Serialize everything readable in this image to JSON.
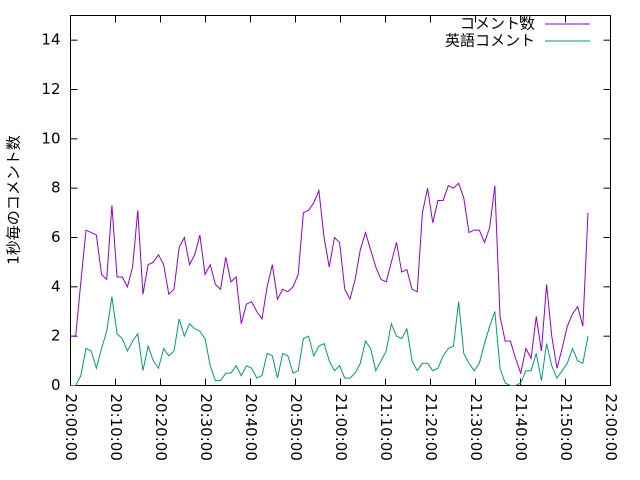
{
  "chart_data": {
    "type": "line",
    "y_label": "1秒毎のコメント数",
    "x": [
      "20:00:00",
      "20:01:09",
      "20:02:18",
      "20:03:27",
      "20:04:36",
      "20:05:45",
      "20:06:54",
      "20:08:03",
      "20:09:12",
      "20:10:21",
      "20:11:30",
      "20:12:39",
      "20:13:48",
      "20:14:57",
      "20:16:06",
      "20:17:15",
      "20:18:24",
      "20:19:33",
      "20:20:42",
      "20:21:51",
      "20:23:00",
      "20:24:09",
      "20:25:18",
      "20:26:27",
      "20:27:36",
      "20:28:45",
      "20:29:54",
      "20:31:03",
      "20:32:12",
      "20:33:21",
      "20:34:30",
      "20:35:39",
      "20:36:48",
      "20:37:57",
      "20:39:06",
      "20:40:15",
      "20:41:24",
      "20:42:33",
      "20:43:42",
      "20:44:51",
      "20:46:00",
      "20:47:09",
      "20:48:18",
      "20:49:27",
      "20:50:36",
      "20:51:45",
      "20:52:54",
      "20:54:03",
      "20:55:12",
      "20:56:21",
      "20:57:30",
      "20:58:39",
      "20:59:48",
      "21:00:57",
      "21:02:06",
      "21:03:15",
      "21:04:24",
      "21:05:33",
      "21:06:42",
      "21:07:51",
      "21:09:00",
      "21:10:09",
      "21:11:18",
      "21:12:27",
      "21:13:36",
      "21:14:45",
      "21:15:54",
      "21:17:03",
      "21:18:12",
      "21:19:21",
      "21:20:30",
      "21:21:39",
      "21:22:48",
      "21:23:57",
      "21:25:06",
      "21:26:15",
      "21:27:24",
      "21:28:33",
      "21:29:42",
      "21:30:51",
      "21:32:00",
      "21:33:09",
      "21:34:18",
      "21:35:27",
      "21:36:36",
      "21:37:45",
      "21:38:54",
      "21:40:03",
      "21:41:12",
      "21:42:21",
      "21:43:30",
      "21:44:39",
      "21:45:48",
      "21:46:57",
      "21:48:06",
      "21:49:15",
      "21:50:24",
      "21:51:33",
      "21:52:42",
      "21:53:51",
      "21:55:00"
    ],
    "series": [
      {
        "name": "コメント数",
        "color": "#9400d3",
        "values": [
          2.0,
          2.0,
          4.2,
          6.3,
          6.2,
          6.1,
          4.5,
          4.3,
          7.3,
          4.4,
          4.4,
          4.0,
          4.8,
          7.1,
          3.7,
          4.9,
          5.0,
          5.3,
          4.9,
          3.7,
          3.9,
          5.6,
          6.0,
          4.9,
          5.3,
          6.1,
          4.5,
          4.9,
          4.1,
          3.9,
          5.2,
          4.2,
          4.4,
          2.5,
          3.3,
          3.4,
          3.0,
          2.7,
          4.0,
          4.9,
          3.5,
          3.9,
          3.8,
          4.0,
          4.5,
          7.0,
          7.1,
          7.4,
          7.9,
          6.0,
          4.8,
          6.0,
          5.8,
          3.9,
          3.5,
          4.3,
          5.5,
          6.2,
          5.5,
          4.8,
          4.3,
          4.2,
          5.0,
          5.8,
          4.6,
          4.7,
          3.9,
          3.8,
          7.0,
          8.0,
          6.6,
          7.5,
          7.5,
          8.1,
          8.0,
          8.2,
          7.6,
          6.2,
          6.3,
          6.3,
          5.8,
          6.4,
          8.1,
          2.8,
          1.8,
          1.8,
          1.1,
          0.5,
          1.5,
          1.1,
          2.8,
          1.4,
          4.1,
          2.0,
          0.7,
          1.5,
          2.4,
          2.9,
          3.2,
          2.4,
          7.0
        ]
      },
      {
        "name": "英語コメント",
        "color": "#009e73",
        "values": [
          0.0,
          0.0,
          0.4,
          1.5,
          1.4,
          0.7,
          1.5,
          2.2,
          3.6,
          2.1,
          1.9,
          1.4,
          1.8,
          2.1,
          0.6,
          1.6,
          1.0,
          0.7,
          1.5,
          1.2,
          1.4,
          2.7,
          2.0,
          2.5,
          2.3,
          2.2,
          1.9,
          0.8,
          0.2,
          0.2,
          0.5,
          0.5,
          0.8,
          0.4,
          0.8,
          0.7,
          0.3,
          0.4,
          1.3,
          1.2,
          0.3,
          1.3,
          1.2,
          0.5,
          0.6,
          1.9,
          2.0,
          1.2,
          1.6,
          1.7,
          1.0,
          0.6,
          0.8,
          0.3,
          0.3,
          0.5,
          0.9,
          1.8,
          1.5,
          0.6,
          1.0,
          1.4,
          2.5,
          2.0,
          1.9,
          2.3,
          1.0,
          0.6,
          0.9,
          0.9,
          0.6,
          0.7,
          1.2,
          1.5,
          1.6,
          3.4,
          1.3,
          0.9,
          0.6,
          0.9,
          1.7,
          2.4,
          3.0,
          0.7,
          0.1,
          0.0,
          0.0,
          0.1,
          0.6,
          0.6,
          1.3,
          0.2,
          1.7,
          0.8,
          0.3,
          0.6,
          0.9,
          1.5,
          1.0,
          0.9,
          2.0
        ]
      }
    ],
    "xlim": [
      "20:00:00",
      "22:00:00"
    ],
    "xticks": [
      "20:00:00",
      "20:10:00",
      "20:20:00",
      "20:30:00",
      "20:40:00",
      "20:50:00",
      "21:00:00",
      "21:10:00",
      "21:20:00",
      "21:30:00",
      "21:40:00",
      "21:50:00",
      "22:00:00"
    ],
    "ylim": [
      0,
      15
    ],
    "yticks": [
      0,
      2,
      4,
      6,
      8,
      10,
      12,
      14
    ],
    "grid": false,
    "legend": "top-right"
  }
}
